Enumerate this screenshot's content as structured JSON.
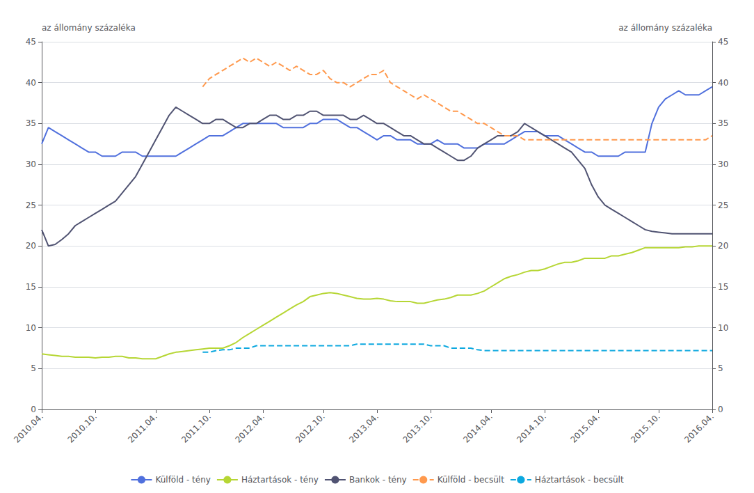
{
  "chart_data": {
    "type": "line",
    "ylabel": "az állomány százaléka",
    "y2label": "az állomány százaléka",
    "categories": [
      "2010.04.",
      null,
      null,
      null,
      null,
      null,
      null,
      null,
      "2010.10.",
      null,
      null,
      null,
      null,
      null,
      null,
      null,
      null,
      "2011.04.",
      null,
      null,
      null,
      null,
      null,
      null,
      null,
      "2011.10.",
      null,
      null,
      null,
      null,
      null,
      null,
      null,
      "2012.04.",
      null,
      null,
      null,
      null,
      null,
      null,
      null,
      null,
      "2012.10.",
      null,
      null,
      null,
      null,
      null,
      null,
      null,
      "2013.04.",
      null,
      null,
      null,
      null,
      null,
      null,
      null,
      "2013.10.",
      null,
      null,
      null,
      null,
      null,
      null,
      null,
      null,
      "2014.04.",
      null,
      null,
      null,
      null,
      null,
      null,
      null,
      "2014.10.",
      null,
      null,
      null,
      null,
      null,
      null,
      null,
      "2015.04.",
      null,
      null,
      null,
      null,
      null,
      null,
      null,
      null,
      "2015.10.",
      null,
      null,
      null,
      null,
      null,
      null,
      null,
      "2016.04."
    ],
    "ylim": [
      0,
      45
    ],
    "yticks": [
      0,
      5,
      10,
      15,
      20,
      25,
      30,
      35,
      40,
      45
    ],
    "y2lim": [
      0,
      45
    ],
    "y2ticks": [
      0,
      5,
      10,
      15,
      20,
      25,
      30,
      35,
      40,
      45
    ],
    "grid": true,
    "legend": "bottom",
    "series": [
      {
        "name": "Külföld - tény",
        "line_style": "solid",
        "values": [
          32.5,
          34.5,
          34.0,
          33.5,
          33.0,
          32.5,
          32.0,
          31.5,
          31.5,
          31.0,
          31.0,
          31.0,
          31.5,
          31.5,
          31.5,
          31.0,
          31.0,
          31.0,
          31.0,
          31.0,
          31.0,
          31.5,
          32.0,
          32.5,
          33.0,
          33.5,
          33.5,
          33.5,
          34.0,
          34.5,
          35.0,
          35.0,
          35.0,
          35.0,
          35.0,
          35.0,
          34.5,
          34.5,
          34.5,
          34.5,
          35.0,
          35.0,
          35.5,
          35.5,
          35.5,
          35.0,
          34.5,
          34.5,
          34.0,
          33.5,
          33.0,
          33.5,
          33.5,
          33.0,
          33.0,
          33.0,
          32.5,
          32.5,
          32.5,
          33.0,
          32.5,
          32.5,
          32.5,
          32.0,
          32.0,
          32.0,
          32.5,
          32.5,
          32.5,
          32.5,
          33.0,
          33.5,
          34.0,
          34.0,
          34.0,
          33.5,
          33.5,
          33.5,
          33.0,
          32.5,
          32.0,
          31.5,
          31.5,
          31.0,
          31.0,
          31.0,
          31.0,
          31.5,
          31.5,
          31.5,
          31.5,
          35.0,
          37.0,
          38.0,
          38.5,
          39.0,
          38.5,
          38.5,
          38.5,
          39.0,
          39.5
        ]
      },
      {
        "name": "Háztartások - tény",
        "line_style": "solid",
        "values": [
          6.8,
          6.7,
          6.6,
          6.5,
          6.5,
          6.4,
          6.4,
          6.4,
          6.3,
          6.4,
          6.4,
          6.5,
          6.5,
          6.3,
          6.3,
          6.2,
          6.2,
          6.2,
          6.5,
          6.8,
          7.0,
          7.1,
          7.2,
          7.3,
          7.4,
          7.5,
          7.5,
          7.5,
          7.8,
          8.2,
          8.8,
          9.3,
          9.8,
          10.3,
          10.8,
          11.3,
          11.8,
          12.3,
          12.8,
          13.2,
          13.8,
          14.0,
          14.2,
          14.3,
          14.2,
          14.0,
          13.8,
          13.6,
          13.5,
          13.5,
          13.6,
          13.5,
          13.3,
          13.2,
          13.2,
          13.2,
          13.0,
          13.0,
          13.2,
          13.4,
          13.5,
          13.7,
          14.0,
          14.0,
          14.0,
          14.2,
          14.5,
          15.0,
          15.5,
          16.0,
          16.3,
          16.5,
          16.8,
          17.0,
          17.0,
          17.2,
          17.5,
          17.8,
          18.0,
          18.0,
          18.2,
          18.5,
          18.5,
          18.5,
          18.5,
          18.8,
          18.8,
          19.0,
          19.2,
          19.5,
          19.8,
          19.8,
          19.8,
          19.8,
          19.8,
          19.8,
          19.9,
          19.9,
          20.0,
          20.0,
          20.0
        ]
      },
      {
        "name": "Bankok - tény",
        "line_style": "solid",
        "values": [
          22.0,
          20.0,
          20.2,
          20.8,
          21.5,
          22.5,
          23.0,
          23.5,
          24.0,
          24.5,
          25.0,
          25.5,
          26.5,
          27.5,
          28.5,
          30.0,
          31.5,
          33.0,
          34.5,
          36.0,
          37.0,
          36.5,
          36.0,
          35.5,
          35.0,
          35.0,
          35.5,
          35.5,
          35.0,
          34.5,
          34.5,
          35.0,
          35.0,
          35.5,
          36.0,
          36.0,
          35.5,
          35.5,
          36.0,
          36.0,
          36.5,
          36.5,
          36.0,
          36.0,
          36.0,
          36.0,
          35.5,
          35.5,
          36.0,
          35.5,
          35.0,
          35.0,
          34.5,
          34.0,
          33.5,
          33.5,
          33.0,
          32.5,
          32.5,
          32.0,
          31.5,
          31.0,
          30.5,
          30.5,
          31.0,
          32.0,
          32.5,
          33.0,
          33.5,
          33.5,
          33.5,
          34.0,
          35.0,
          34.5,
          34.0,
          33.5,
          33.0,
          32.5,
          32.0,
          31.5,
          30.5,
          29.5,
          27.5,
          26.0,
          25.0,
          24.5,
          24.0,
          23.5,
          23.0,
          22.5,
          22.0,
          21.8,
          21.7,
          21.6,
          21.5,
          21.5,
          21.5,
          21.5,
          21.5,
          21.5,
          21.5
        ]
      },
      {
        "name": "Külföld - becsült",
        "line_style": "dashed",
        "values": [
          null,
          null,
          null,
          null,
          null,
          null,
          null,
          null,
          null,
          null,
          null,
          null,
          null,
          null,
          null,
          null,
          null,
          null,
          null,
          null,
          null,
          null,
          null,
          null,
          39.5,
          40.5,
          41.0,
          41.5,
          42.0,
          42.5,
          43.0,
          42.5,
          43.0,
          42.5,
          42.0,
          42.5,
          42.0,
          41.5,
          42.0,
          41.5,
          41.0,
          41.0,
          41.5,
          40.5,
          40.0,
          40.0,
          39.5,
          40.0,
          40.5,
          41.0,
          41.0,
          41.5,
          40.0,
          39.5,
          39.0,
          38.5,
          38.0,
          38.5,
          38.0,
          37.5,
          37.0,
          36.5,
          36.5,
          36.0,
          35.5,
          35.0,
          35.0,
          34.5,
          34.0,
          33.5,
          33.5,
          33.5,
          33.0,
          33.0,
          33.0,
          33.0,
          33.0,
          33.0,
          33.0,
          33.0,
          33.0,
          33.0,
          33.0,
          33.0,
          33.0,
          33.0,
          33.0,
          33.0,
          33.0,
          33.0,
          33.0,
          33.0,
          33.0,
          33.0,
          33.0,
          33.0,
          33.0,
          33.0,
          33.0,
          33.0,
          33.5
        ]
      },
      {
        "name": "Háztartások - becsült",
        "line_style": "dashed",
        "values": [
          null,
          null,
          null,
          null,
          null,
          null,
          null,
          null,
          null,
          null,
          null,
          null,
          null,
          null,
          null,
          null,
          null,
          null,
          null,
          null,
          null,
          null,
          null,
          null,
          7.0,
          7.0,
          7.2,
          7.3,
          7.3,
          7.5,
          7.5,
          7.5,
          7.8,
          7.8,
          7.8,
          7.8,
          7.8,
          7.8,
          7.8,
          7.8,
          7.8,
          7.8,
          7.8,
          7.8,
          7.8,
          7.8,
          7.8,
          8.0,
          8.0,
          8.0,
          8.0,
          8.0,
          8.0,
          8.0,
          8.0,
          8.0,
          8.0,
          8.0,
          7.8,
          7.8,
          7.8,
          7.5,
          7.5,
          7.5,
          7.5,
          7.3,
          7.2,
          7.2,
          7.2,
          7.2,
          7.2,
          7.2,
          7.2,
          7.2,
          7.2,
          7.2,
          7.2,
          7.2,
          7.2,
          7.2,
          7.2,
          7.2,
          7.2,
          7.2,
          7.2,
          7.2,
          7.2,
          7.2,
          7.2,
          7.2,
          7.2,
          7.2,
          7.2,
          7.2,
          7.2,
          7.2,
          7.2,
          7.2,
          7.2,
          7.2,
          7.2
        ]
      }
    ]
  }
}
